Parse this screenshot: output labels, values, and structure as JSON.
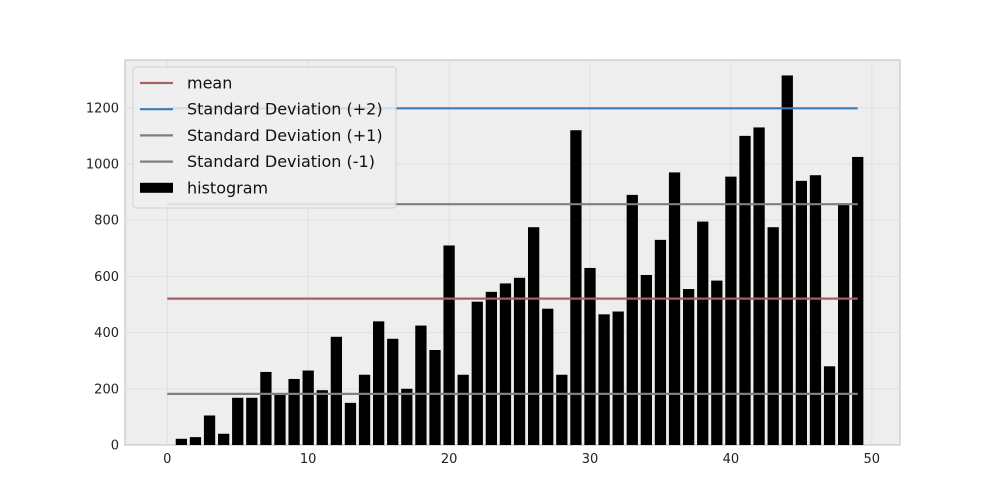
{
  "chart_data": {
    "type": "bar",
    "title": "",
    "xlabel": "",
    "ylabel": "",
    "xlim": [
      -3,
      52
    ],
    "ylim": [
      0,
      1370
    ],
    "xticks": [
      0,
      10,
      20,
      30,
      40,
      50
    ],
    "yticks": [
      0,
      200,
      400,
      600,
      800,
      1000,
      1200
    ],
    "grid": true,
    "legend_position": "top-left",
    "x": [
      0,
      1,
      2,
      3,
      4,
      5,
      6,
      7,
      8,
      9,
      10,
      11,
      12,
      13,
      14,
      15,
      16,
      17,
      18,
      19,
      20,
      21,
      22,
      23,
      24,
      25,
      26,
      27,
      28,
      29,
      30,
      31,
      32,
      33,
      34,
      35,
      36,
      37,
      38,
      39,
      40,
      41,
      42,
      43,
      44,
      45,
      46,
      47,
      48,
      49
    ],
    "series": [
      {
        "name": "histogram",
        "type": "bar",
        "color": "#000000",
        "values": [
          0,
          22,
          28,
          105,
          40,
          168,
          168,
          260,
          180,
          235,
          265,
          195,
          385,
          150,
          250,
          440,
          378,
          200,
          425,
          338,
          710,
          250,
          510,
          545,
          575,
          595,
          775,
          485,
          250,
          1120,
          630,
          465,
          475,
          890,
          605,
          730,
          970,
          555,
          795,
          585,
          955,
          1100,
          1130,
          775,
          1315,
          940,
          960,
          280,
          860,
          1025
        ]
      },
      {
        "name": "mean",
        "type": "hline",
        "color": "#a65f66",
        "value": 521,
        "x_range": [
          0,
          49
        ]
      },
      {
        "name": "Standard Deviation (+2)",
        "type": "hline",
        "color": "#3d7ab8",
        "value": 1198,
        "x_range": [
          0,
          49
        ]
      },
      {
        "name": "Standard Deviation (+1)",
        "type": "hline",
        "color": "#7f7f7f",
        "value": 857,
        "x_range": [
          0,
          49
        ]
      },
      {
        "name": "Standard Deviation (-1)",
        "type": "hline",
        "color": "#7f7f7f",
        "value": 182,
        "x_range": [
          0,
          49
        ]
      }
    ]
  }
}
